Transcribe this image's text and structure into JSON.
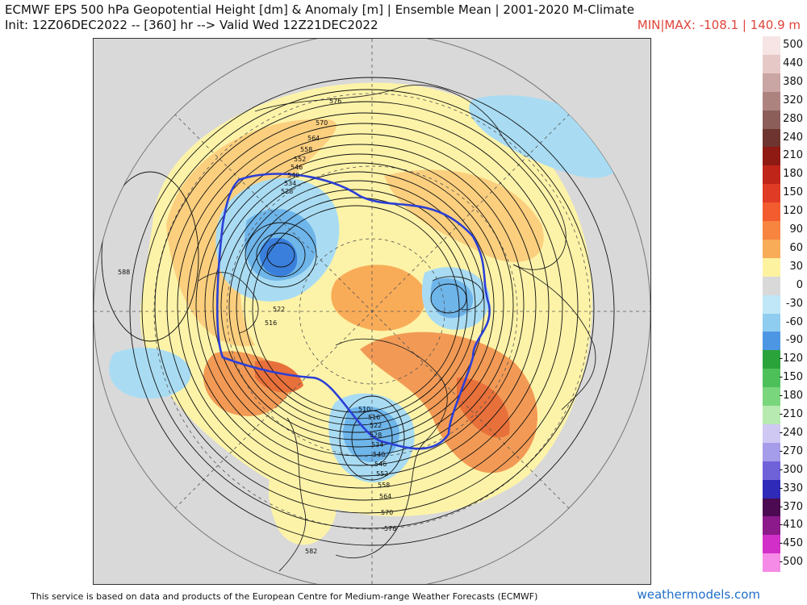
{
  "header": {
    "title_line1": "ECMWF EPS 500 hPa Geopotential Height [dm] & Anomaly [m] | Ensemble Mean | 2001-2020 M-Climate",
    "title_line2": "Init: 12Z06DEC2022 -- [360] hr --> Valid Wed 12Z21DEC2022",
    "minmax": "MIN|MAX: -108.1 | 140.9 m"
  },
  "map": {
    "contour_labels": [
      "576",
      "570",
      "564",
      "558",
      "552",
      "546",
      "540",
      "534",
      "528",
      "522",
      "516",
      "510",
      "516",
      "522",
      "528",
      "534",
      "540",
      "546",
      "552",
      "558",
      "564",
      "570",
      "576",
      "582",
      "588"
    ],
    "colors": {
      "background": "#d9d9d9",
      "blue_contour": "#2b3fd6",
      "positive_light": "#fdf3a8",
      "positive_mid": "#fbcf7e",
      "positive_strong": "#f29a55",
      "positive_max": "#e8703a",
      "negative_light": "#a9dcf3",
      "negative_mid": "#6eb5ea",
      "negative_strong": "#3a7fdc"
    }
  },
  "legend": {
    "items": [
      {
        "label": "500",
        "color": "#f7e4e4"
      },
      {
        "label": "440",
        "color": "#e6c9c7"
      },
      {
        "label": "380",
        "color": "#c9a5a3"
      },
      {
        "label": "320",
        "color": "#ad837f"
      },
      {
        "label": "280",
        "color": "#8b5e5a"
      },
      {
        "label": "240",
        "color": "#6e3530"
      },
      {
        "label": "210",
        "color": "#8e1a13"
      },
      {
        "label": "180",
        "color": "#c0251a"
      },
      {
        "label": "150",
        "color": "#e03b24"
      },
      {
        "label": "120",
        "color": "#f25c2e"
      },
      {
        "label": "90",
        "color": "#f7843f"
      },
      {
        "label": "60",
        "color": "#f9ac58"
      },
      {
        "label": "30",
        "color": "#fdf2a0"
      },
      {
        "label": "0",
        "color": "#d9d9d9"
      },
      {
        "label": "-30",
        "color": "#bfe7f7"
      },
      {
        "label": "-60",
        "color": "#8fcdf0"
      },
      {
        "label": "-90",
        "color": "#4d96e3"
      },
      {
        "label": "-120",
        "color": "#2aa33a"
      },
      {
        "label": "-150",
        "color": "#4dc05a"
      },
      {
        "label": "-180",
        "color": "#7ad67d"
      },
      {
        "label": "-210",
        "color": "#b7eab0"
      },
      {
        "label": "-240",
        "color": "#cfc8f3"
      },
      {
        "label": "-270",
        "color": "#a59cea"
      },
      {
        "label": "-300",
        "color": "#6f62d9"
      },
      {
        "label": "-330",
        "color": "#2f2ab8"
      },
      {
        "label": "-370",
        "color": "#4b0a52"
      },
      {
        "label": "-410",
        "color": "#8c1a8a"
      },
      {
        "label": "-450",
        "color": "#d22fc9"
      },
      {
        "label": "-500",
        "color": "#f58be6"
      }
    ]
  },
  "footer": {
    "disclaimer": "This service is based on data and products of the European Centre for Medium-range Weather Forecasts (ECMWF)",
    "brand": "weathermodels.com"
  }
}
